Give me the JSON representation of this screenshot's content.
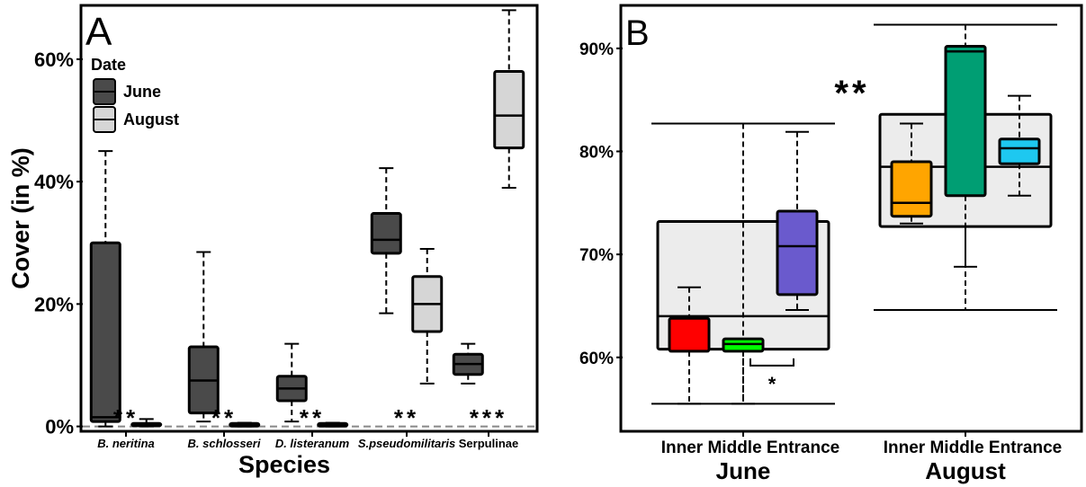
{
  "colors": {
    "june": "#4a4a4a",
    "august": "#d6d6d6",
    "bg_box": "#ececec",
    "inner_june": "#ff0000",
    "middle_june": "#00ff00",
    "entrance_june": "#6a5acd",
    "inner_aug": "#ffa500",
    "middle_aug": "#009e73",
    "entrance_aug": "#1ec8f0"
  },
  "chart_data": [
    {
      "type": "box",
      "panel_label": "A",
      "xlabel": "Species",
      "ylabel": "Cover (in %)",
      "ylim": [
        -0.5,
        68.5
      ],
      "yticks": [
        0,
        20,
        40,
        60
      ],
      "ytick_labels": [
        "0%",
        "20%",
        "40%",
        "60%"
      ],
      "categories": [
        "B. neritina",
        "B. schlosseri",
        "D. listeranum",
        "S.pseudomilitaris",
        "Serpulinae"
      ],
      "category_italic": [
        true,
        true,
        true,
        true,
        false
      ],
      "legend": {
        "title": "Date",
        "entries": [
          "June",
          "August"
        ],
        "position": "top-left"
      },
      "reference_line": 0,
      "significance": [
        "**",
        "**",
        "**",
        "**",
        "***"
      ],
      "series": [
        {
          "name": "June",
          "boxes": [
            {
              "min": 0,
              "q1": 0.8,
              "median": 1.5,
              "q3": 30,
              "max": 45
            },
            {
              "min": 0.8,
              "q1": 2.2,
              "median": 7.5,
              "q3": 13,
              "max": 28.5
            },
            {
              "min": 0.8,
              "q1": 4.2,
              "median": 6.2,
              "q3": 8.2,
              "max": 13.5
            },
            {
              "min": 18.5,
              "q1": 28.3,
              "median": 30.5,
              "q3": 34.8,
              "max": 42.2
            },
            {
              "min": 7,
              "q1": 8.5,
              "median": 10.2,
              "q3": 11.8,
              "max": 13.5
            }
          ]
        },
        {
          "name": "August",
          "boxes": [
            {
              "min": 0,
              "q1": 0.1,
              "median": 0.2,
              "q3": 0.5,
              "max": 1.2
            },
            {
              "min": 0,
              "q1": 0.05,
              "median": 0.1,
              "q3": 0.5,
              "max": 0.6
            },
            {
              "min": 0,
              "q1": 0.05,
              "median": 0.1,
              "q3": 0.5,
              "max": 0.6
            },
            {
              "min": 7,
              "q1": 15.5,
              "median": 20,
              "q3": 24.5,
              "max": 29
            },
            {
              "min": 39,
              "q1": 45.5,
              "median": 50.8,
              "q3": 58,
              "max": 68
            }
          ]
        }
      ]
    },
    {
      "type": "box",
      "panel_label": "B",
      "ylim": [
        53,
        94
      ],
      "yticks": [
        60,
        70,
        80,
        90
      ],
      "ytick_labels": [
        "60%",
        "70%",
        "80%",
        "90%"
      ],
      "groups": [
        "June",
        "August"
      ],
      "subcategories": [
        "Inner",
        "Middle",
        "Entrance"
      ],
      "group_significance": "**",
      "pair_significance": {
        "group": "June",
        "between": [
          "Middle",
          "Entrance"
        ],
        "label": "*"
      },
      "group_boxes": [
        {
          "min": 55.5,
          "q1": 60.8,
          "median": 64,
          "q3": 73.2,
          "max": 82.7
        },
        {
          "min": 64.6,
          "q1": 72.7,
          "median": 78.5,
          "q3": 83.6,
          "max": 92.3
        }
      ],
      "series": [
        {
          "name": "June",
          "boxes": [
            {
              "min": 55.5,
              "q1": 60.6,
              "median": 60.6,
              "q3": 63.8,
              "max": 66.8
            },
            {
              "min": 55.5,
              "q1": 60.6,
              "median": 61.3,
              "q3": 61.8,
              "max": 82.7
            },
            {
              "min": 64.6,
              "q1": 66.1,
              "median": 70.8,
              "q3": 74.2,
              "max": 81.9
            }
          ]
        },
        {
          "name": "August",
          "boxes": [
            {
              "min": 73,
              "q1": 73.7,
              "median": 75,
              "q3": 79,
              "max": 82.7
            },
            {
              "min": 68.8,
              "q1": 75.7,
              "median": 89.7,
              "q3": 90.2,
              "max": 92.3
            },
            {
              "min": 75.7,
              "q1": 78.8,
              "median": 80.3,
              "q3": 81.2,
              "max": 85.4
            }
          ]
        }
      ]
    }
  ]
}
